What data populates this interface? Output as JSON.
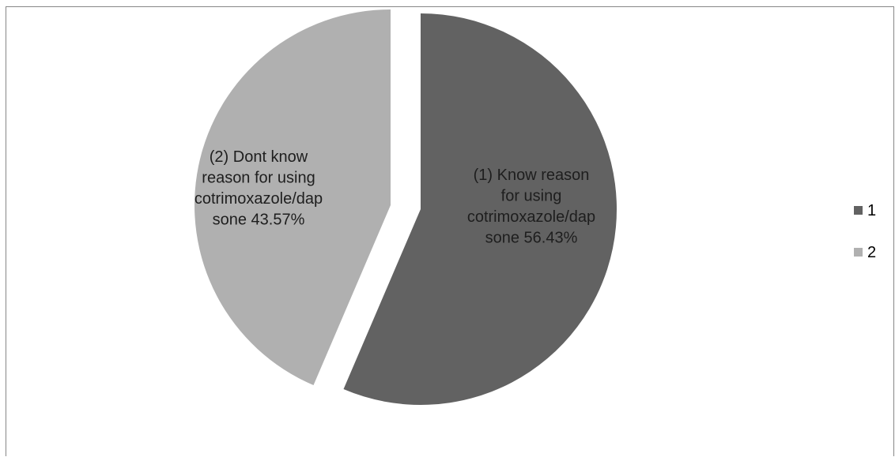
{
  "chart_data": {
    "type": "pie",
    "title": "",
    "slices": [
      {
        "legend": "1",
        "value": 56.43,
        "color": "#626262",
        "label_lines": [
          "(1) Know reason",
          "for using",
          "cotrimoxazole/dap",
          "sone 56.43%"
        ]
      },
      {
        "legend": "2",
        "value": 43.57,
        "color": "#b0b0b0",
        "label_lines": [
          "(2) Dont know",
          "reason for using",
          "cotrimoxazole/dap",
          "sone 43.57%"
        ]
      }
    ],
    "exploded": true,
    "legend_position": "right"
  }
}
